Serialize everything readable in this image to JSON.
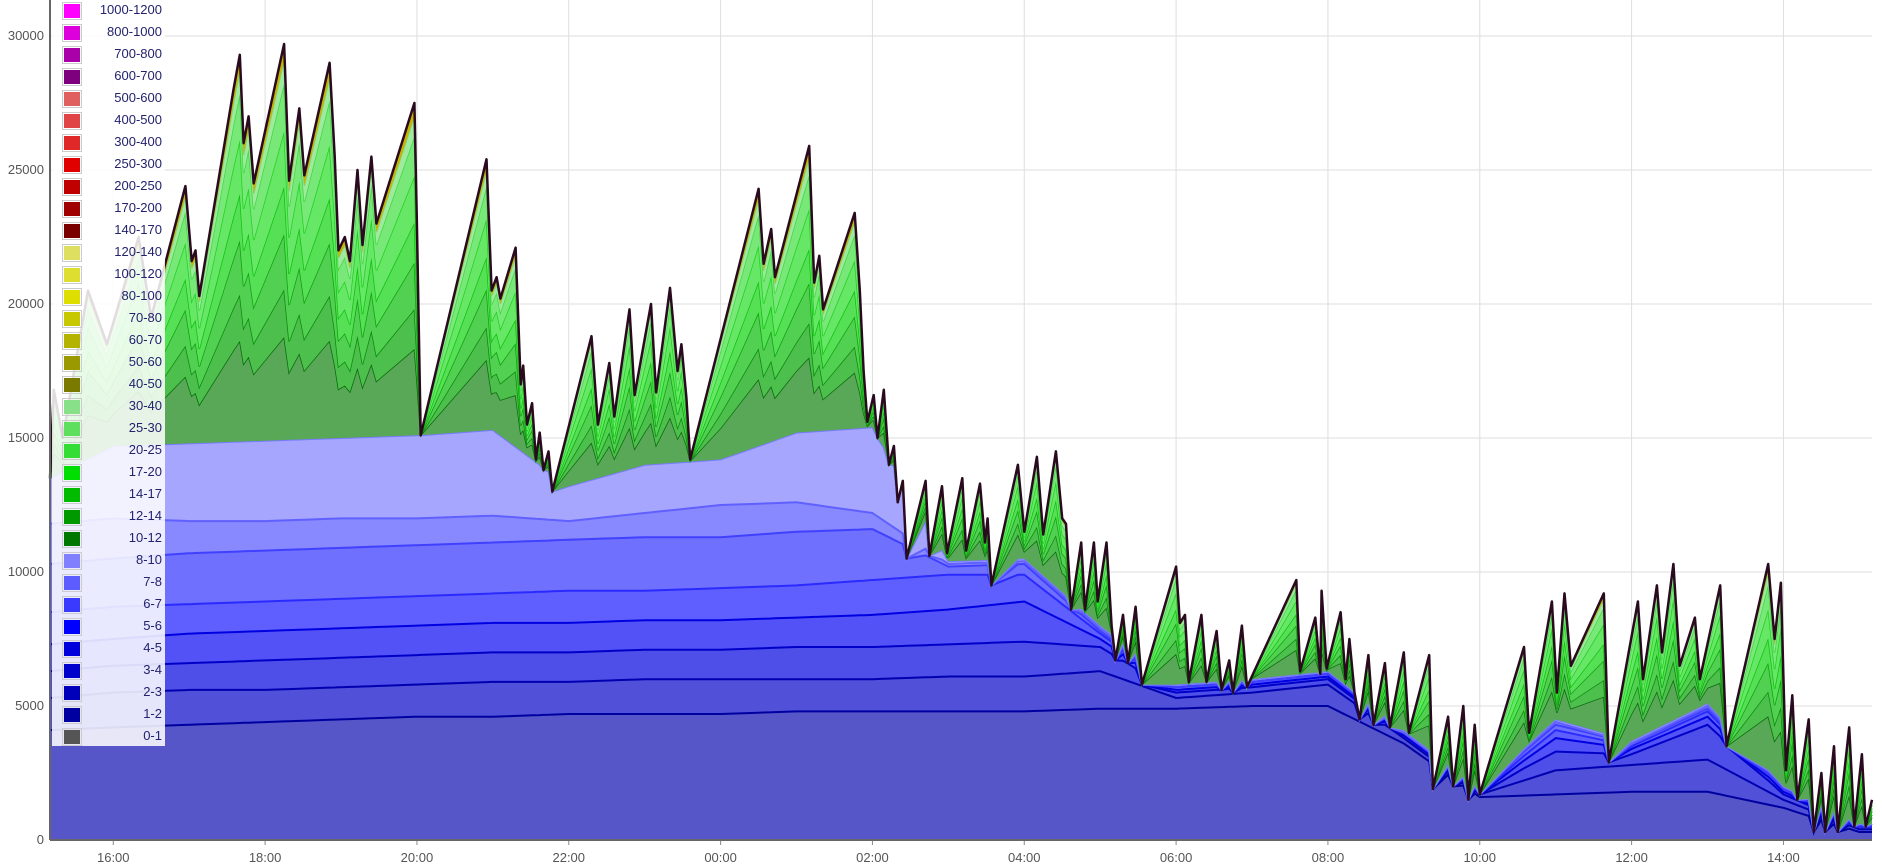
{
  "chart_data": {
    "type": "area",
    "stacked": true,
    "title": "",
    "xlabel": "",
    "ylabel": "",
    "ylim": [
      0,
      30000
    ],
    "grid": true,
    "legend_position": "top-left",
    "yticks": [
      "0",
      "5000",
      "10000",
      "15000",
      "20000",
      "25000",
      "30000"
    ],
    "xticks": [
      "16:00",
      "18:00",
      "20:00",
      "22:00",
      "00:00",
      "02:00",
      "04:00",
      "06:00",
      "08:00",
      "10:00",
      "12:00",
      "14:00"
    ],
    "x_range": [
      "15:10",
      "15:10"
    ],
    "legend": [
      {
        "label": "1000-1200",
        "color": "#ff00ff"
      },
      {
        "label": "800-1000",
        "color": "#dd00dd"
      },
      {
        "label": "700-800",
        "color": "#aa00aa"
      },
      {
        "label": "600-700",
        "color": "#7f007f"
      },
      {
        "label": "500-600",
        "color": "#e06060"
      },
      {
        "label": "400-500",
        "color": "#e04444"
      },
      {
        "label": "300-400",
        "color": "#e02828"
      },
      {
        "label": "250-300",
        "color": "#e00000"
      },
      {
        "label": "200-250",
        "color": "#c00000"
      },
      {
        "label": "170-200",
        "color": "#a00000"
      },
      {
        "label": "140-170",
        "color": "#7a0000"
      },
      {
        "label": "120-140",
        "color": "#dede60"
      },
      {
        "label": "100-120",
        "color": "#dede30"
      },
      {
        "label": "80-100",
        "color": "#dede00"
      },
      {
        "label": "70-80",
        "color": "#c8c800"
      },
      {
        "label": "60-70",
        "color": "#b4b400"
      },
      {
        "label": "50-60",
        "color": "#9a9a00"
      },
      {
        "label": "40-50",
        "color": "#7a7a00"
      },
      {
        "label": "30-40",
        "color": "#88e088"
      },
      {
        "label": "25-30",
        "color": "#5ee05e"
      },
      {
        "label": "20-25",
        "color": "#33dd33"
      },
      {
        "label": "17-20",
        "color": "#00dd00"
      },
      {
        "label": "14-17",
        "color": "#00bb00"
      },
      {
        "label": "12-14",
        "color": "#009900"
      },
      {
        "label": "10-12",
        "color": "#007700"
      },
      {
        "label": "8-10",
        "color": "#8080ff"
      },
      {
        "label": "7-8",
        "color": "#5c5cff"
      },
      {
        "label": "6-7",
        "color": "#3a3aff"
      },
      {
        "label": "5-6",
        "color": "#0000ff"
      },
      {
        "label": "4-5",
        "color": "#0000dd"
      },
      {
        "label": "3-4",
        "color": "#0000cc"
      },
      {
        "label": "2-3",
        "color": "#0000bb"
      },
      {
        "label": "1-2",
        "color": "#0000a0"
      },
      {
        "label": "0-1",
        "color": "#555555"
      }
    ],
    "x": [
      "15:10",
      "16:00",
      "17:00",
      "18:00",
      "19:00",
      "20:00",
      "21:00",
      "22:00",
      "23:00",
      "00:00",
      "01:00",
      "02:00",
      "03:00",
      "04:00",
      "05:00",
      "06:00",
      "07:00",
      "08:00",
      "09:00",
      "10:00",
      "11:00",
      "12:00",
      "13:00",
      "14:00",
      "15:00",
      "15:10"
    ],
    "series": [
      {
        "name": "1-2",
        "color": "#5656c8",
        "values": [
          4100,
          4200,
          4300,
          4400,
          4500,
          4600,
          4600,
          4700,
          4700,
          4700,
          4800,
          4800,
          4800,
          4800,
          4900,
          4900,
          5000,
          5000,
          3600,
          1600,
          1700,
          1800,
          1800,
          1200,
          300,
          300
        ]
      },
      {
        "name": "2-3",
        "color": "#5050d8",
        "values": [
          1200,
          1300,
          1300,
          1200,
          1200,
          1200,
          1300,
          1200,
          1300,
          1300,
          1200,
          1200,
          1300,
          1300,
          1400,
          400,
          500,
          800,
          200,
          100,
          900,
          1000,
          1200,
          300,
          100,
          100
        ]
      },
      {
        "name": "3-4",
        "color": "#4e4ee8",
        "values": [
          1000,
          1000,
          1000,
          1100,
          1100,
          1100,
          1100,
          1100,
          1100,
          1100,
          1200,
          1200,
          1200,
          1300,
          900,
          200,
          200,
          200,
          100,
          100,
          700,
          400,
          1300,
          200,
          100,
          100
        ]
      },
      {
        "name": "4-5",
        "color": "#5252f6",
        "values": [
          1000,
          1000,
          1100,
          1100,
          1100,
          1100,
          1100,
          1100,
          1100,
          1100,
          1100,
          1200,
          1300,
          1500,
          300,
          100,
          100,
          100,
          0,
          0,
          500,
          200,
          300,
          100,
          0,
          0
        ]
      },
      {
        "name": "5-6",
        "color": "#5f5fff",
        "values": [
          1200,
          1200,
          1100,
          1100,
          1100,
          1100,
          1100,
          1200,
          1100,
          1200,
          1200,
          1300,
          1300,
          1000,
          200,
          100,
          100,
          100,
          100,
          0,
          300,
          100,
          200,
          100,
          0,
          0
        ]
      },
      {
        "name": "6-7",
        "color": "#7070ff",
        "values": [
          1800,
          1800,
          1900,
          1900,
          1900,
          1900,
          1900,
          1900,
          2000,
          1900,
          2000,
          1900,
          300,
          400,
          100,
          0,
          0,
          0,
          0,
          100,
          200,
          100,
          100,
          0,
          100,
          100
        ]
      },
      {
        "name": "7-8",
        "color": "#8888ff",
        "values": [
          1500,
          1500,
          1200,
          1100,
          1100,
          1000,
          1000,
          700,
          900,
          1200,
          1100,
          600,
          100,
          100,
          100,
          100,
          100,
          100,
          0,
          0,
          100,
          0,
          100,
          100,
          0,
          0
        ]
      },
      {
        "name": "8-10",
        "color": "#a6a6ff",
        "values": [
          1700,
          2700,
          2900,
          3000,
          3000,
          3100,
          3200,
          1300,
          1800,
          1700,
          2600,
          3200,
          100,
          100,
          100,
          0,
          0,
          0,
          100,
          0,
          100,
          100,
          100,
          0,
          0,
          0
        ]
      }
    ],
    "total": {
      "x": [
        "15:10",
        "15:13",
        "15:20",
        "15:40",
        "15:55",
        "16:20",
        "16:30",
        "16:57",
        "17:02",
        "17:05",
        "17:08",
        "17:35",
        "17:40",
        "17:43",
        "17:47",
        "17:51",
        "18:15",
        "18:19",
        "18:27",
        "18:31",
        "18:51",
        "18:55",
        "18:58",
        "19:03",
        "19:07",
        "19:13",
        "19:17",
        "19:24",
        "19:28",
        "19:58",
        "20:00",
        "20:03",
        "20:55",
        "20:59",
        "21:03",
        "21:06",
        "21:18",
        "21:22",
        "21:24",
        "21:27",
        "21:31",
        "21:34",
        "21:37",
        "21:40",
        "21:44",
        "21:47",
        "22:18",
        "22:23",
        "22:32",
        "22:36",
        "22:48",
        "22:52",
        "23:05",
        "23:09",
        "23:20",
        "23:26",
        "23:29",
        "23:33",
        "23:36",
        "00:30",
        "00:34",
        "00:40",
        "00:43",
        "01:10",
        "01:14",
        "01:18",
        "01:21",
        "01:46",
        "01:50",
        "01:53",
        "01:56",
        "02:01",
        "02:04",
        "02:09",
        "02:13",
        "02:17",
        "02:20",
        "02:24",
        "02:27",
        "02:42",
        "02:45",
        "02:55",
        "02:59",
        "03:11",
        "03:14",
        "03:25",
        "03:29",
        "03:31",
        "03:34",
        "03:55",
        "04:00",
        "04:10",
        "04:15",
        "04:25",
        "04:30",
        "04:33",
        "04:37",
        "04:45",
        "04:48",
        "04:55",
        "04:58",
        "05:05",
        "05:09",
        "05:12",
        "05:18",
        "05:22",
        "05:28",
        "05:33",
        "06:00",
        "06:03",
        "06:07",
        "06:10",
        "06:20",
        "06:24",
        "06:32",
        "06:36",
        "06:42",
        "06:45",
        "06:52",
        "06:56",
        "07:35",
        "07:38",
        "07:50",
        "07:54",
        "07:55",
        "07:59",
        "08:10",
        "08:14",
        "08:17",
        "08:21",
        "08:25",
        "08:32",
        "08:36",
        "08:45",
        "08:49",
        "09:00",
        "09:04",
        "09:20",
        "09:23",
        "09:35",
        "09:39",
        "09:47",
        "09:51",
        "09:56",
        "10:00",
        "10:35",
        "10:39",
        "10:57",
        "11:01",
        "11:07",
        "11:12",
        "11:38",
        "11:42",
        "12:05",
        "12:09",
        "12:20",
        "12:24",
        "12:33",
        "12:38",
        "12:50",
        "12:54",
        "13:10",
        "13:15",
        "13:48",
        "13:53",
        "13:58",
        "14:02",
        "14:07",
        "14:11",
        "14:20",
        "14:24",
        "14:30",
        "14:33",
        "14:40",
        "14:43",
        "14:52",
        "14:56",
        "15:02",
        "15:05",
        "15:10"
      ],
      "values": [
        13500,
        16800,
        15000,
        20500,
        18500,
        22500,
        19500,
        24400,
        21600,
        22000,
        20300,
        28000,
        29300,
        26000,
        27000,
        24500,
        29700,
        24600,
        27300,
        24800,
        29000,
        25500,
        22000,
        22500,
        21600,
        25000,
        22200,
        25500,
        23000,
        27500,
        23000,
        15100,
        25400,
        20500,
        21000,
        20200,
        22100,
        17000,
        17700,
        15500,
        16300,
        14200,
        15200,
        13800,
        14500,
        13000,
        18800,
        15500,
        17800,
        15800,
        19800,
        16600,
        20000,
        16700,
        20600,
        17500,
        18500,
        16500,
        14200,
        24300,
        21500,
        22800,
        21000,
        25900,
        20800,
        21800,
        19800,
        23400,
        20500,
        17500,
        15600,
        16600,
        15000,
        16800,
        14000,
        14700,
        12600,
        13400,
        10500,
        13400,
        10600,
        13200,
        10700,
        13500,
        10800,
        13300,
        11100,
        12000,
        9500,
        14000,
        11500,
        14300,
        11400,
        14500,
        12000,
        11800,
        8600,
        11100,
        8600,
        11100,
        8900,
        11100,
        8000,
        6700,
        8400,
        6600,
        8700,
        5800,
        10200,
        8100,
        8400,
        5900,
        8400,
        5900,
        7800,
        5600,
        6700,
        5500,
        8000,
        5700,
        9700,
        6300,
        8300,
        6200,
        9300,
        6400,
        8500,
        6000,
        7500,
        5500,
        4500,
        6900,
        4300,
        6600,
        4200,
        7000,
        4000,
        6900,
        1900,
        4600,
        2000,
        5000,
        1500,
        4300,
        1700,
        7200,
        4000,
        8900,
        5500,
        9200,
        6500,
        9200,
        2900,
        8900,
        6000,
        9500,
        7000,
        10300,
        6500,
        8300,
        6000,
        9500,
        3500,
        10300,
        7500,
        9600,
        2600,
        5400,
        1500,
        4500,
        300,
        2500,
        300,
        3500,
        300,
        4200,
        500,
        3200,
        500,
        1500
      ]
    }
  }
}
